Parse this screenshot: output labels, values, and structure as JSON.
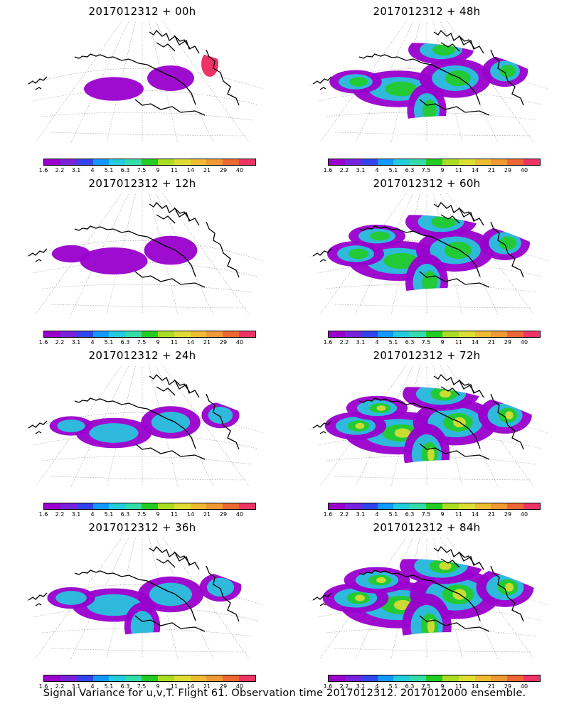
{
  "panels": [
    {
      "title": "2017012312 + 00h",
      "intensity": 0
    },
    {
      "title": "2017012312 + 48h",
      "intensity": 4
    },
    {
      "title": "2017012312 + 12h",
      "intensity": 1
    },
    {
      "title": "2017012312 + 60h",
      "intensity": 5
    },
    {
      "title": "2017012312 + 24h",
      "intensity": 2
    },
    {
      "title": "2017012312 + 72h",
      "intensity": 6
    },
    {
      "title": "2017012312 + 36h",
      "intensity": 3
    },
    {
      "title": "2017012312 + 84h",
      "intensity": 7
    }
  ],
  "colorbar": {
    "colors": [
      "#9900cc",
      "#7722dd",
      "#3344ee",
      "#1199ff",
      "#22ccdd",
      "#33ddaa",
      "#22cc22",
      "#aadd22",
      "#dddd33",
      "#eebb33",
      "#ee9933",
      "#ee6633",
      "#ee3366"
    ],
    "labels": [
      "1.6",
      "2.2",
      "3.1",
      "4",
      "5.1",
      "6.3",
      "7.5",
      "9",
      "11",
      "14",
      "21",
      "29",
      "40"
    ]
  },
  "caption": "Signal Variance for u,v,T. Flight 61. Observation time 2017012312. 2017012000 ensemble."
}
